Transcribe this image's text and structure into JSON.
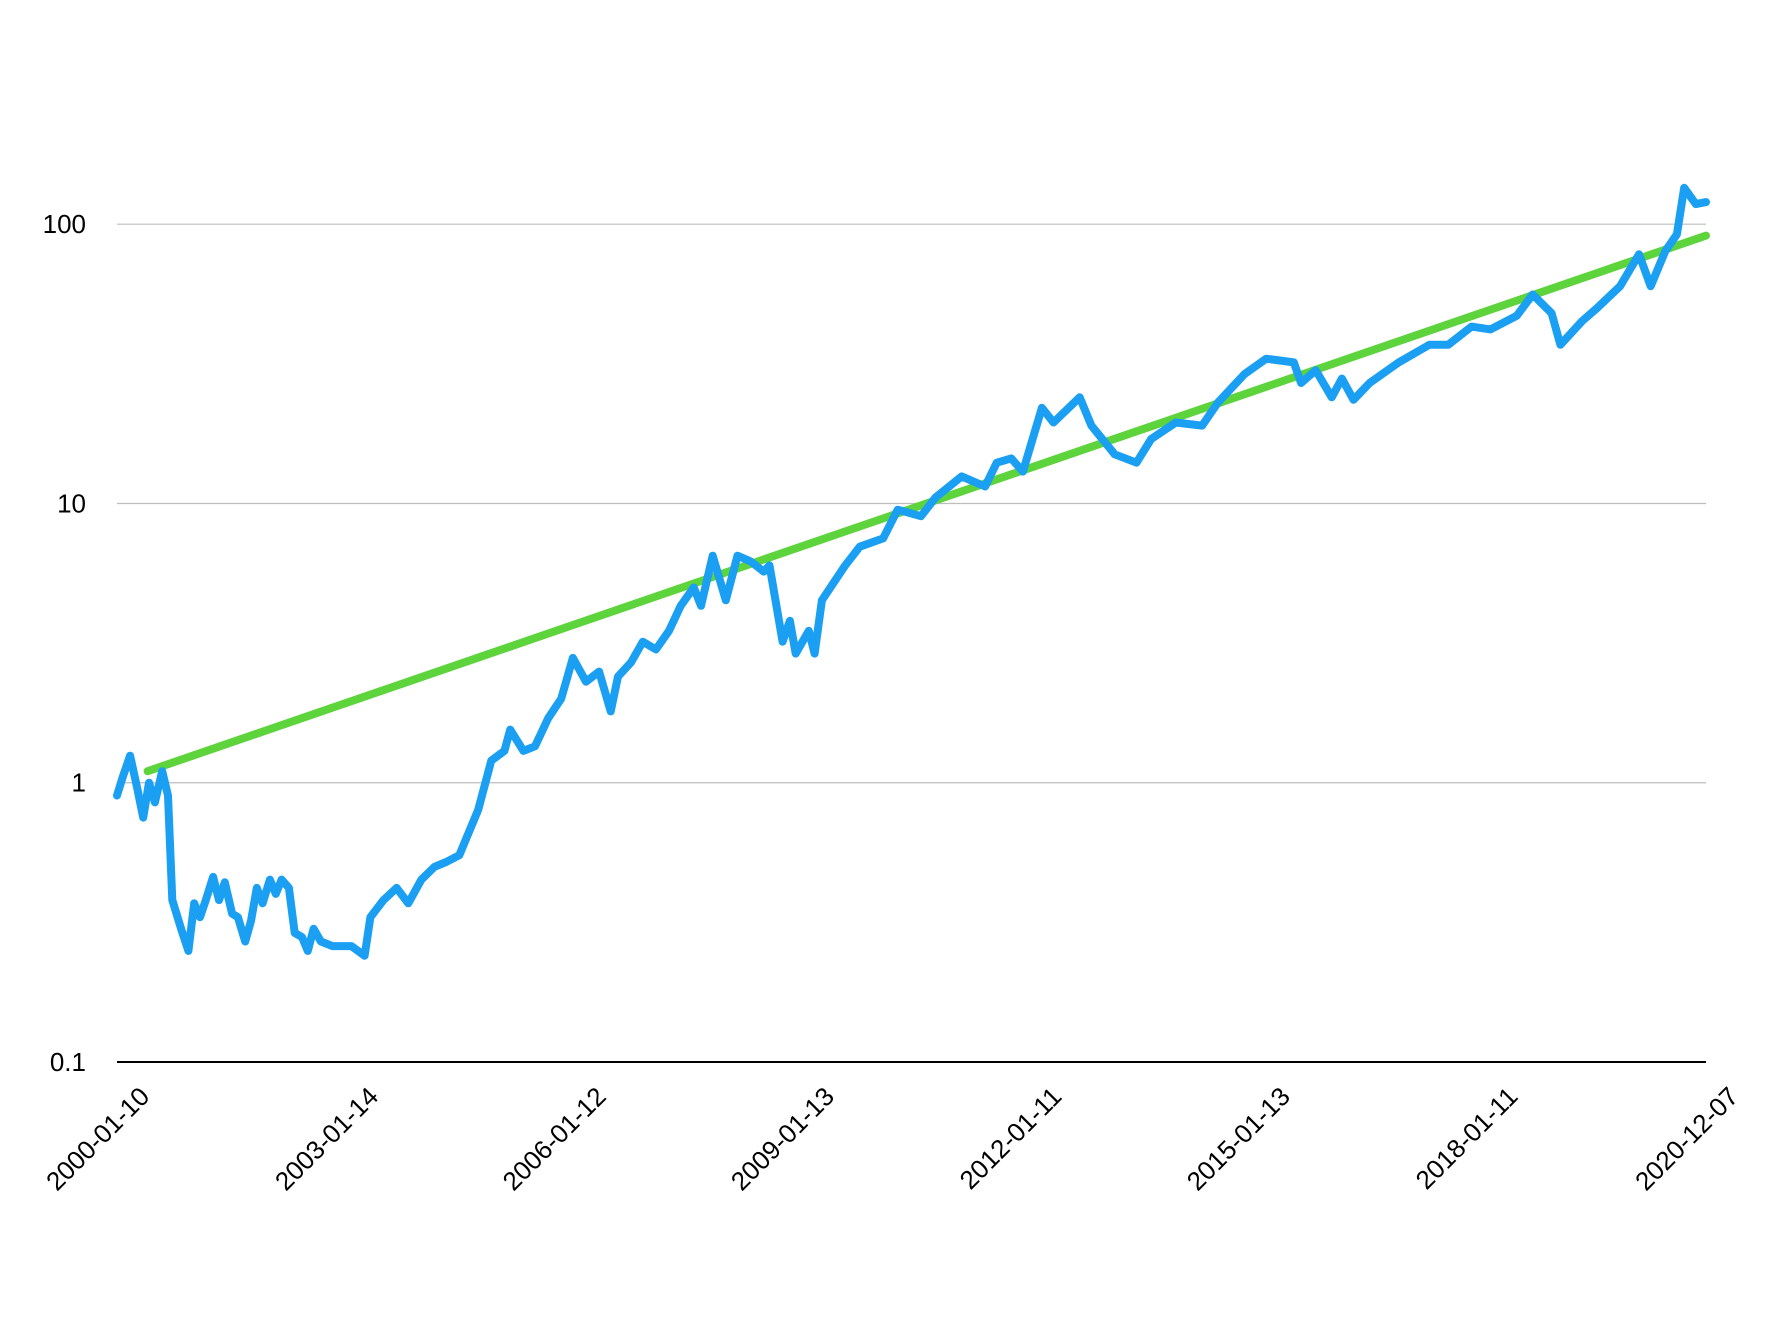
{
  "chart_data": {
    "type": "line",
    "log_scale": true,
    "grid": true,
    "ylim": [
      0.1,
      500
    ],
    "yticks": [
      0.1,
      1,
      10,
      100
    ],
    "xlim": [
      "2000-01-10",
      "2020-12-07"
    ],
    "xticks": [
      "2000-01-10",
      "2003-01-14",
      "2006-01-12",
      "2009-01-13",
      "2012-01-11",
      "2015-01-13",
      "2018-01-11",
      "2020-12-07"
    ],
    "series": [
      {
        "color": "#1a9ff2",
        "x": [
          "2000-01-10",
          "2000-02-07",
          "2000-03-13",
          "2000-04-17",
          "2000-05-15",
          "2000-06-12",
          "2000-07-10",
          "2000-08-14",
          "2000-09-11",
          "2000-10-02",
          "2000-11-13",
          "2000-12-18",
          "2001-01-15",
          "2001-02-12",
          "2001-03-12",
          "2001-04-16",
          "2001-05-14",
          "2001-06-11",
          "2001-07-16",
          "2001-08-13",
          "2001-09-17",
          "2001-10-15",
          "2001-11-12",
          "2001-12-10",
          "2002-01-14",
          "2002-02-11",
          "2002-03-11",
          "2002-04-15",
          "2002-05-13",
          "2002-06-17",
          "2002-07-15",
          "2002-08-12",
          "2002-09-16",
          "2002-11-11",
          "2003-02-10",
          "2003-04-14",
          "2003-05-12",
          "2003-07-14",
          "2003-09-15",
          "2003-11-10",
          "2004-01-12",
          "2004-03-15",
          "2004-05-10",
          "2004-07-12",
          "2004-10-11",
          "2004-12-13",
          "2005-02-14",
          "2005-03-14",
          "2005-05-16",
          "2005-07-11",
          "2005-09-12",
          "2005-11-14",
          "2006-01-09",
          "2006-03-13",
          "2006-05-15",
          "2006-07-10",
          "2006-08-14",
          "2006-10-16",
          "2006-12-11",
          "2007-02-12",
          "2007-04-16",
          "2007-06-11",
          "2007-08-13",
          "2007-09-17",
          "2007-11-12",
          "2008-01-14",
          "2008-03-10",
          "2008-05-12",
          "2008-07-14",
          "2008-08-11",
          "2008-10-13",
          "2008-11-17",
          "2008-12-15",
          "2009-02-16",
          "2009-03-16",
          "2009-04-20",
          "2009-08-10",
          "2009-10-19",
          "2010-02-08",
          "2010-04-19",
          "2010-08-09",
          "2010-10-18",
          "2011-02-21",
          "2011-06-13",
          "2011-08-08",
          "2011-10-17",
          "2011-12-12",
          "2012-03-12",
          "2012-05-07",
          "2012-09-10",
          "2012-11-05",
          "2013-02-25",
          "2013-06-10",
          "2013-08-19",
          "2013-12-16",
          "2014-04-21",
          "2014-07-07",
          "2014-11-10",
          "2015-02-23",
          "2015-07-06",
          "2015-08-10",
          "2015-10-19",
          "2016-01-04",
          "2016-02-22",
          "2016-04-18",
          "2016-07-04",
          "2016-11-21",
          "2017-04-17",
          "2017-07-17",
          "2017-11-06",
          "2018-02-05",
          "2018-06-11",
          "2018-08-27",
          "2018-11-26",
          "2019-01-07",
          "2019-04-22",
          "2019-07-01",
          "2019-10-21",
          "2020-01-20",
          "2020-03-16",
          "2020-05-25",
          "2020-07-20",
          "2020-08-24",
          "2020-10-19",
          "2020-12-07"
        ],
        "values": [
          0.9,
          1.05,
          1.25,
          0.95,
          0.75,
          1.0,
          0.85,
          1.1,
          0.9,
          0.38,
          0.3,
          0.25,
          0.37,
          0.33,
          0.38,
          0.46,
          0.38,
          0.44,
          0.34,
          0.33,
          0.27,
          0.32,
          0.42,
          0.37,
          0.45,
          0.4,
          0.45,
          0.42,
          0.29,
          0.28,
          0.25,
          0.3,
          0.27,
          0.26,
          0.26,
          0.24,
          0.33,
          0.38,
          0.42,
          0.37,
          0.45,
          0.5,
          0.52,
          0.55,
          0.8,
          1.2,
          1.3,
          1.55,
          1.3,
          1.35,
          1.7,
          2.0,
          2.8,
          2.3,
          2.5,
          1.8,
          2.4,
          2.7,
          3.2,
          3.0,
          3.5,
          4.3,
          5.0,
          4.3,
          6.5,
          4.5,
          6.5,
          6.2,
          5.7,
          6.0,
          3.2,
          3.8,
          2.9,
          3.5,
          2.9,
          4.5,
          6.0,
          7.0,
          7.5,
          9.5,
          9.0,
          10.5,
          12.5,
          11.5,
          14.0,
          14.5,
          13.0,
          22.0,
          19.5,
          24.0,
          19.0,
          15.0,
          14.0,
          17.0,
          19.5,
          19.0,
          23.0,
          29.0,
          33.0,
          32.0,
          27.0,
          30.0,
          24.0,
          28.0,
          23.5,
          27.0,
          32.0,
          37.0,
          37.0,
          43.0,
          42.0,
          47.0,
          56.0,
          48.0,
          37.0,
          45.0,
          50.0,
          60.0,
          78.0,
          60.0,
          80.0,
          92.0,
          135.0,
          118.0,
          120.0
        ]
      },
      {
        "color": "#5dd43c",
        "x": [
          "2000-06-05",
          "2020-12-07"
        ],
        "values": [
          1.1,
          91
        ]
      }
    ]
  }
}
